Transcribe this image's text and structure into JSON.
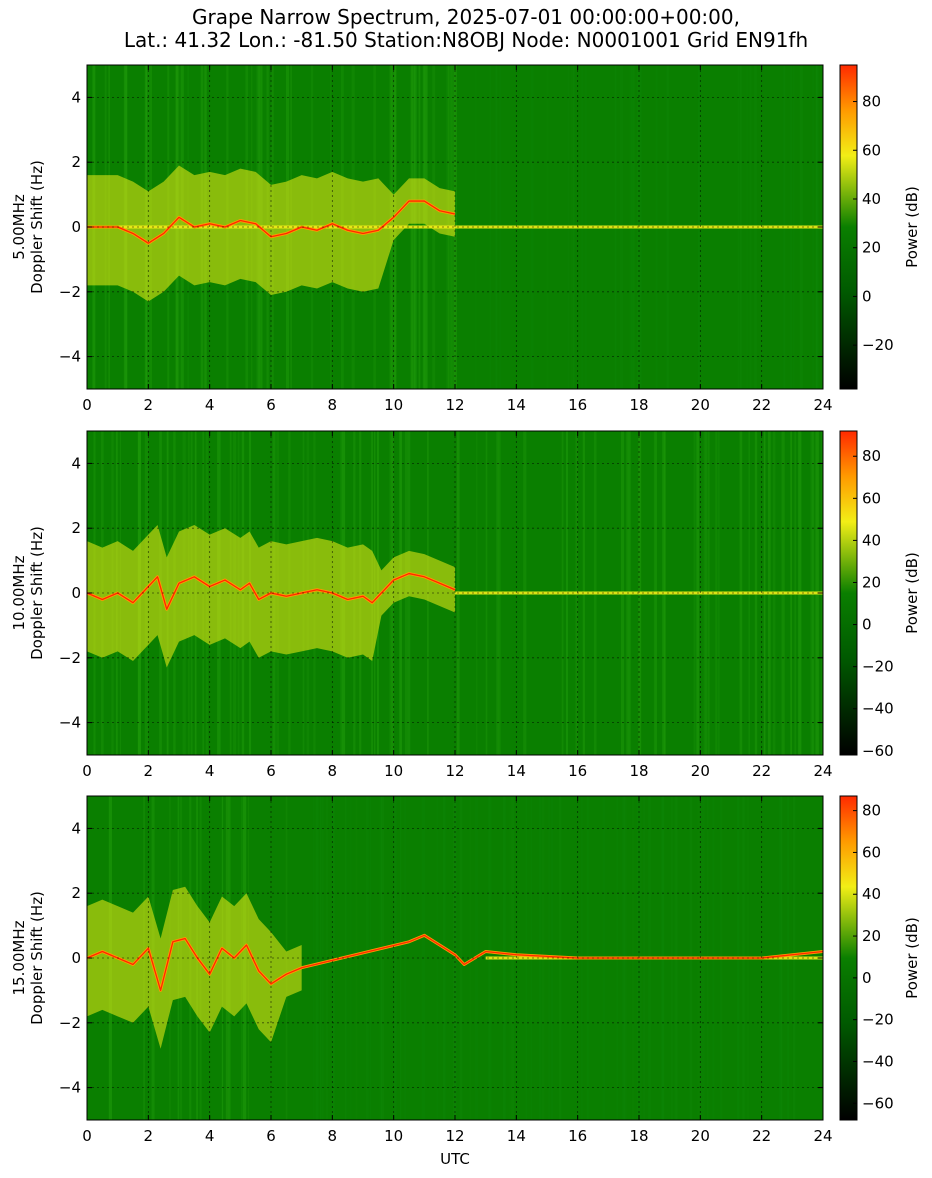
{
  "title_lines": [
    "Grape Narrow Spectrum, 2025-07-01 00:00:00+00:00,",
    "Lat.: 41.32 Lon.: -81.50 Station:N8OBJ Node: N0001001 Grid EN91fh"
  ],
  "colors": {
    "background_green": "#0a7f00",
    "noise_green": "#1f9a0a",
    "yellow": "#f2ee16",
    "orange": "#ff9a00",
    "red": "#ff2a00",
    "black": "#000000"
  },
  "chart_data": [
    {
      "type": "heatmap",
      "xlabel": "",
      "ylabel_lines": [
        "5.00MHz",
        "Doppler Shift (Hz)"
      ],
      "xlim": [
        0,
        24
      ],
      "ylim": [
        -5,
        5
      ],
      "x_ticks": [
        0,
        2,
        4,
        6,
        8,
        10,
        12,
        14,
        16,
        18,
        20,
        22,
        24
      ],
      "y_ticks": [
        -4,
        -2,
        0,
        2,
        4
      ],
      "grid": true,
      "colorbar": {
        "label": "Power (dB)",
        "range": [
          -38,
          95
        ],
        "ticks": [
          -20,
          0,
          20,
          40,
          60,
          80
        ]
      },
      "activity_band": {
        "x_start": 0,
        "x_end": 12.5,
        "strong_until": 9.5
      },
      "carrier_line": {
        "x_start": 0,
        "x_end": 24
      },
      "doppler_trace": {
        "x": [
          0,
          1,
          1.5,
          2,
          2.5,
          3,
          3.5,
          4,
          4.5,
          5,
          5.5,
          6,
          6.5,
          7,
          7.5,
          8,
          8.5,
          9,
          9.5,
          10,
          10.5,
          11,
          11.5,
          12
        ],
        "y": [
          0,
          0,
          -0.2,
          -0.5,
          -0.2,
          0.3,
          0,
          0.1,
          0,
          0.2,
          0.1,
          -0.3,
          -0.2,
          0,
          -0.1,
          0.1,
          -0.1,
          -0.2,
          -0.1,
          0.3,
          0.8,
          0.8,
          0.5,
          0.4
        ]
      }
    },
    {
      "type": "heatmap",
      "xlabel": "",
      "ylabel_lines": [
        "10.00MHz",
        "Doppler Shift (Hz)"
      ],
      "xlim": [
        0,
        24
      ],
      "ylim": [
        -5,
        5
      ],
      "x_ticks": [
        0,
        2,
        4,
        6,
        8,
        10,
        12,
        14,
        16,
        18,
        20,
        22,
        24
      ],
      "y_ticks": [
        -4,
        -2,
        0,
        2,
        4
      ],
      "grid": true,
      "colorbar": {
        "label": "Power (dB)",
        "range": [
          -62,
          92
        ],
        "ticks": [
          -60,
          -40,
          -20,
          0,
          20,
          40,
          60,
          80
        ]
      },
      "activity_band": {
        "x_start": 0,
        "x_end": 24,
        "strong_until": 9.5
      },
      "carrier_line": {
        "x_start": 12,
        "x_end": 24
      },
      "doppler_trace": {
        "x": [
          0,
          0.5,
          1,
          1.5,
          2,
          2.3,
          2.6,
          3,
          3.5,
          4,
          4.5,
          5,
          5.3,
          5.6,
          6,
          6.5,
          7,
          7.5,
          8,
          8.5,
          9,
          9.3,
          9.6,
          10,
          10.5,
          11,
          11.5,
          12
        ],
        "y": [
          0,
          -0.2,
          0,
          -0.3,
          0.2,
          0.5,
          -0.5,
          0.3,
          0.5,
          0.2,
          0.4,
          0.1,
          0.3,
          -0.2,
          0,
          -0.1,
          0,
          0.1,
          0,
          -0.2,
          -0.1,
          -0.3,
          0,
          0.4,
          0.6,
          0.5,
          0.3,
          0.1
        ]
      }
    },
    {
      "type": "heatmap",
      "xlabel": "UTC",
      "ylabel_lines": [
        "15.00MHz",
        "Doppler Shift (Hz)"
      ],
      "xlim": [
        0,
        24
      ],
      "ylim": [
        -5,
        5
      ],
      "x_ticks": [
        0,
        2,
        4,
        6,
        8,
        10,
        12,
        14,
        16,
        18,
        20,
        22,
        24
      ],
      "y_ticks": [
        -4,
        -2,
        0,
        2,
        4
      ],
      "grid": true,
      "colorbar": {
        "label": "Power (dB)",
        "range": [
          -68,
          87
        ],
        "ticks": [
          -60,
          -40,
          -20,
          0,
          20,
          40,
          60,
          80
        ]
      },
      "activity_band": {
        "x_start": 0,
        "x_end": 7.2,
        "strong_until": 6
      },
      "carrier_line": {
        "x_start": 13,
        "x_end": 24
      },
      "doppler_trace": {
        "x": [
          0,
          0.5,
          1,
          1.5,
          2,
          2.4,
          2.8,
          3.2,
          3.6,
          4,
          4.4,
          4.8,
          5.2,
          5.6,
          6,
          6.5,
          7,
          10.5,
          11,
          11.5,
          12,
          12.3,
          13,
          14,
          16,
          18,
          20,
          22,
          24
        ],
        "y": [
          0,
          0.2,
          0,
          -0.2,
          0.3,
          -1,
          0.5,
          0.6,
          0,
          -0.5,
          0.3,
          0,
          0.4,
          -0.4,
          -0.8,
          -0.5,
          -0.3,
          0.5,
          0.7,
          0.4,
          0.1,
          -0.2,
          0.2,
          0.1,
          0,
          0,
          0,
          0,
          0.2
        ]
      }
    }
  ]
}
